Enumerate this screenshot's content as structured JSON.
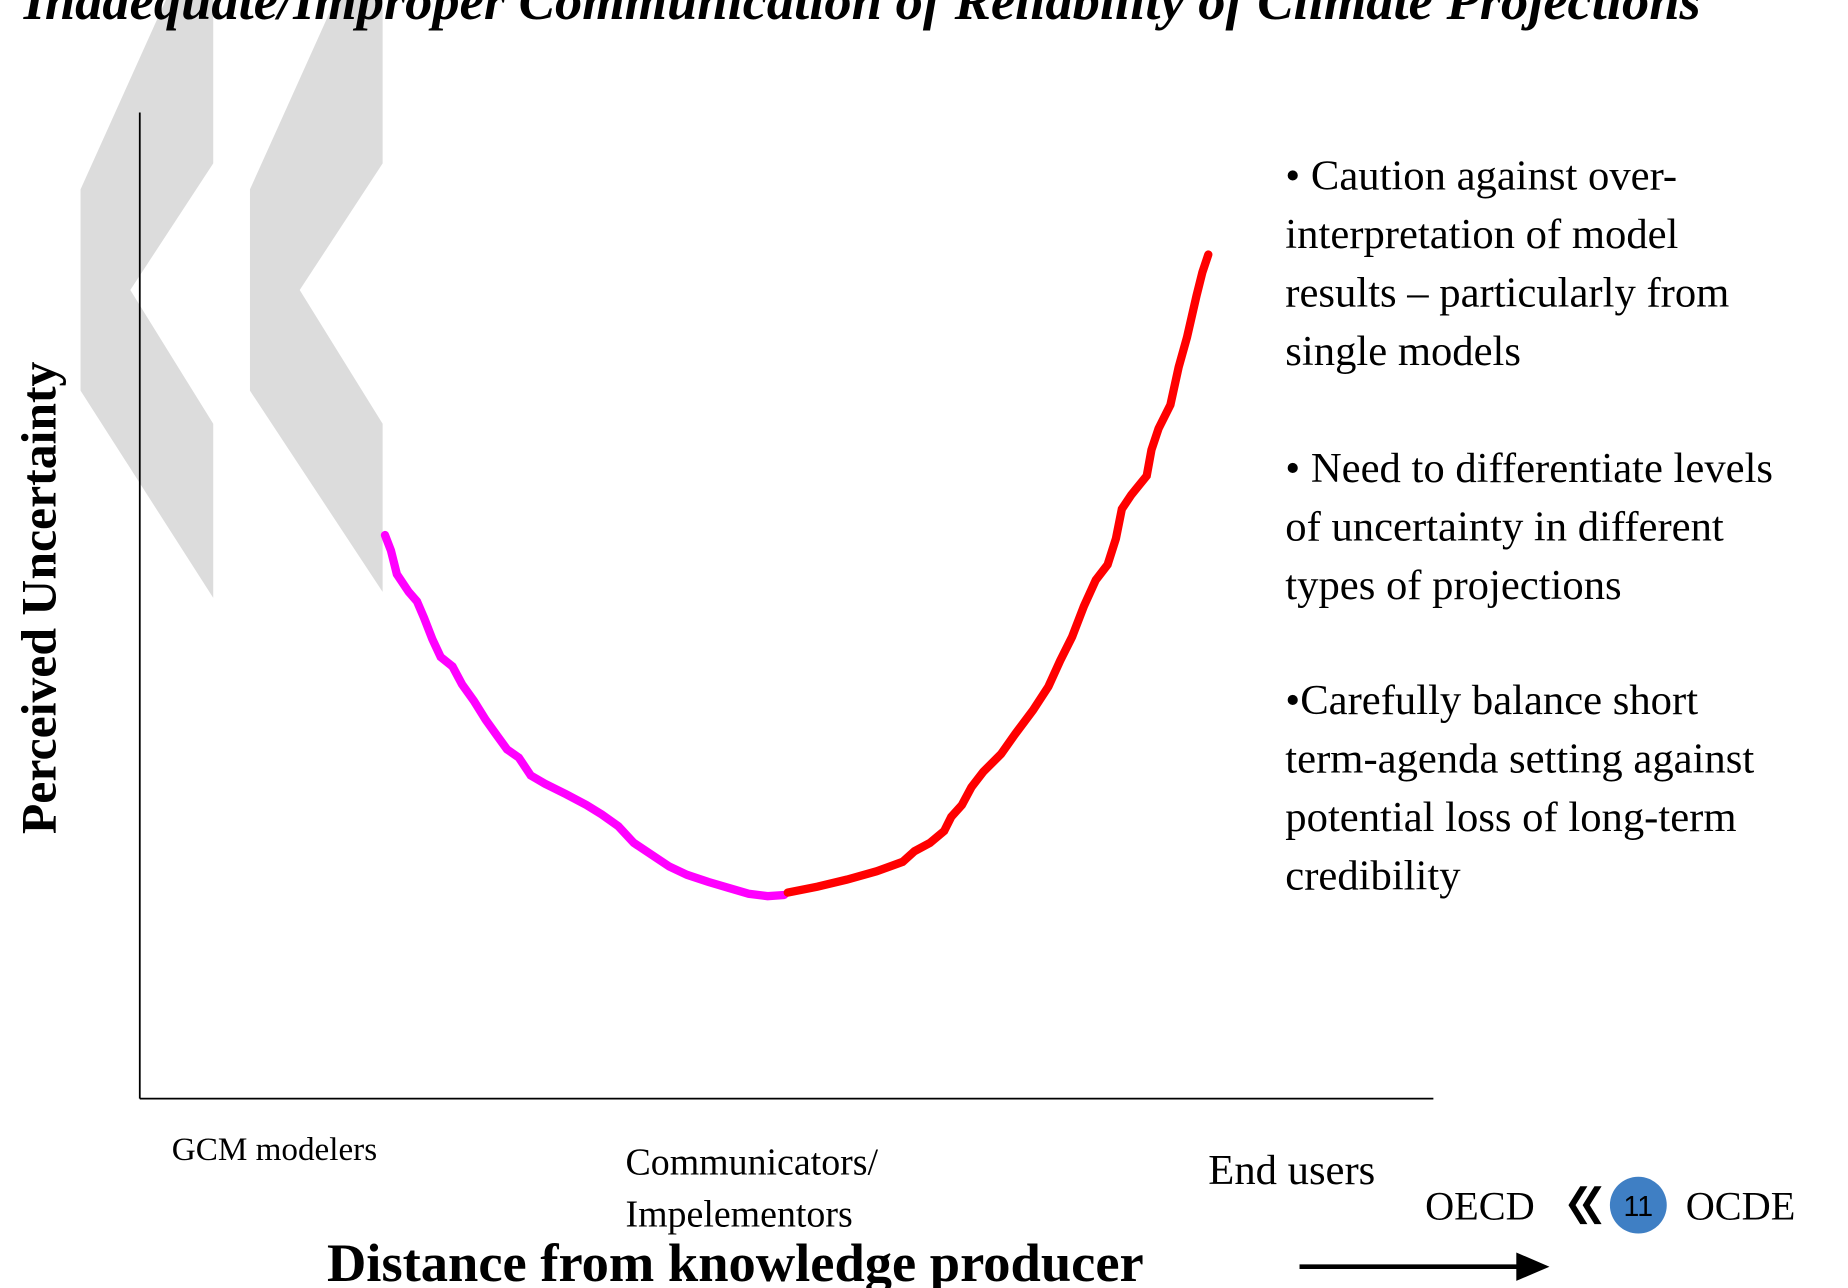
{
  "title": "Inadequate/Improper Communication of Reliability of Climate Projections",
  "y_axis_label": "Perceived Uncertainty",
  "x_axis_label": "Distance from knowledge producer",
  "x_categories": [
    [
      "GCM modelers"
    ],
    [
      "Communicators/",
      "Impelementors"
    ],
    [
      "End users"
    ]
  ],
  "bullets": [
    [
      "• Caution against over-",
      "interpretation of model",
      "results – particularly from",
      "single models"
    ],
    [
      "• Need to differentiate levels",
      "of uncertainty in different",
      "types of projections"
    ],
    [
      "•Carefully balance short",
      "term-agenda setting against",
      "potential loss of long-term",
      "credibility"
    ]
  ],
  "footer": {
    "left": "OECD",
    "page_number": "11",
    "right": "OCDE"
  }
}
